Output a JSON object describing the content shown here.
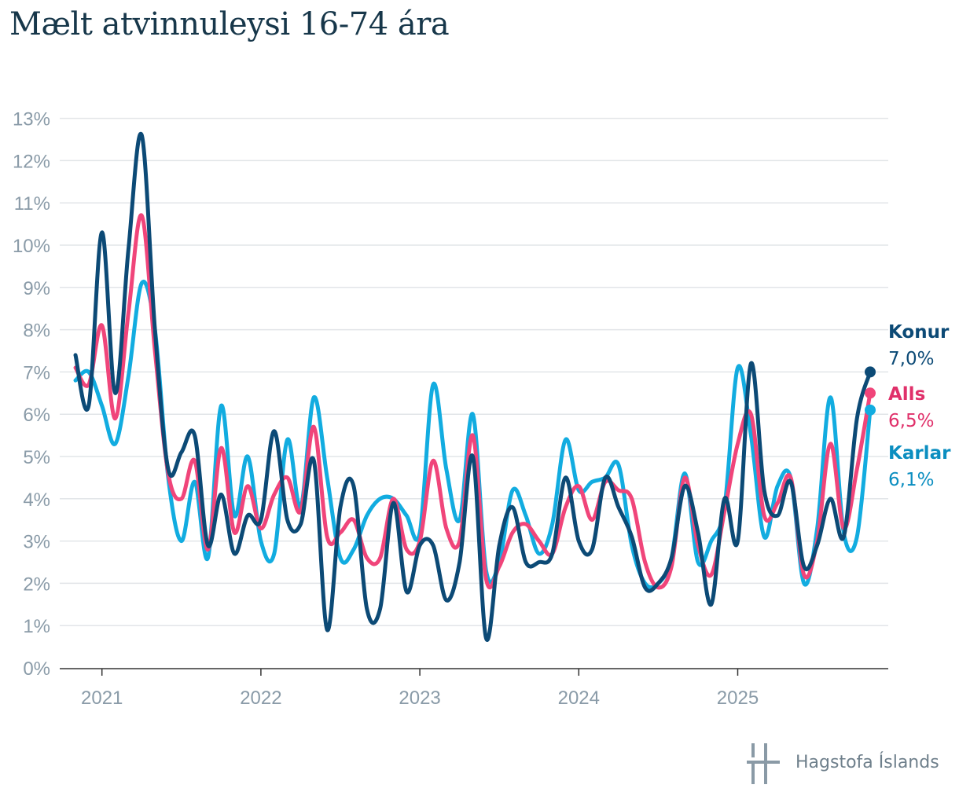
{
  "title": "Mælt atvinnuleysi 16-74 ára",
  "brand": "Hagstofa Íslands",
  "colors": {
    "konur": "#0c4a76",
    "alls": "#f0457a",
    "karlar": "#12ace0",
    "grid": "#e2e5e8",
    "tick": "#8a9ba8",
    "axis": "#333333"
  },
  "chart_data": {
    "type": "line",
    "title": "Mælt atvinnuleysi 16-74 ára",
    "xlabel": "",
    "ylabel": "",
    "ylim": [
      0,
      13
    ],
    "y_ticks": [
      "0%",
      "1%",
      "2%",
      "3%",
      "4%",
      "5%",
      "6%",
      "7%",
      "8%",
      "9%",
      "10%",
      "11%",
      "12%",
      "13%"
    ],
    "x_ticks": [
      "2021",
      "2022",
      "2023",
      "2024",
      "2025"
    ],
    "x_start": "2020-11",
    "x_end": "2025-11",
    "grid": true,
    "legend": "end-labels-right",
    "series": [
      {
        "name": "Alls",
        "end_value": "6,5%",
        "values": [
          7.1,
          6.7,
          8.1,
          5.9,
          8.4,
          10.7,
          7.5,
          4.6,
          4.0,
          4.9,
          2.8,
          5.2,
          3.2,
          4.3,
          3.3,
          4.1,
          4.5,
          3.7,
          5.7,
          3.1,
          3.2,
          3.5,
          2.6,
          2.6,
          4.0,
          2.8,
          3.0,
          4.9,
          3.3,
          3.0,
          5.5,
          2.1,
          2.4,
          3.2,
          3.4,
          3.0,
          2.7,
          3.8,
          4.3,
          3.5,
          4.4,
          4.2,
          4.0,
          2.5,
          1.9,
          2.4,
          4.5,
          2.9,
          2.2,
          3.7,
          5.3,
          6.0,
          3.6,
          3.9,
          4.5,
          2.2,
          3.0,
          5.3,
          3.3,
          4.7,
          6.5
        ]
      },
      {
        "name": "Konur",
        "end_value": "7,0%",
        "values": [
          7.4,
          6.2,
          10.3,
          6.5,
          9.9,
          12.6,
          8.0,
          4.7,
          5.1,
          5.5,
          2.9,
          4.1,
          2.7,
          3.6,
          3.5,
          5.6,
          3.5,
          3.4,
          4.9,
          0.9,
          3.8,
          4.3,
          1.4,
          1.4,
          3.9,
          1.8,
          2.9,
          2.9,
          1.6,
          2.5,
          5.0,
          0.7,
          2.9,
          3.8,
          2.5,
          2.5,
          2.7,
          4.5,
          3.0,
          2.8,
          4.5,
          3.8,
          3.1,
          1.9,
          2.0,
          2.6,
          4.3,
          3.2,
          1.5,
          4.0,
          3.0,
          7.2,
          4.2,
          3.6,
          4.4,
          2.4,
          2.9,
          4.0,
          3.1,
          5.9,
          7.0
        ]
      },
      {
        "name": "Karlar",
        "end_value": "6,1%",
        "values": [
          6.8,
          7.0,
          6.2,
          5.3,
          6.9,
          9.1,
          8.0,
          4.5,
          3.0,
          4.4,
          2.6,
          6.2,
          3.6,
          5.0,
          3.0,
          2.7,
          5.4,
          3.8,
          6.4,
          4.5,
          2.6,
          2.8,
          3.6,
          4.0,
          4.0,
          3.6,
          3.2,
          6.7,
          4.7,
          3.5,
          6.0,
          2.3,
          2.5,
          4.2,
          3.6,
          2.7,
          3.4,
          5.4,
          4.2,
          4.4,
          4.5,
          4.8,
          2.9,
          2.0,
          2.0,
          2.6,
          4.6,
          2.5,
          3.0,
          3.8,
          7.1,
          5.5,
          3.1,
          4.3,
          4.5,
          2.0,
          3.3,
          6.4,
          3.2,
          3.1,
          6.1
        ]
      }
    ]
  }
}
